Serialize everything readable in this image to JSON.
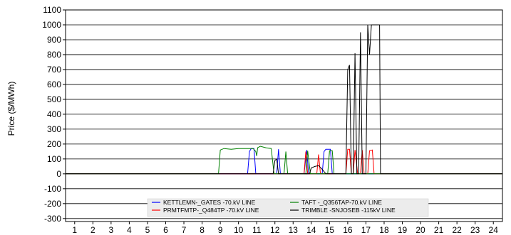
{
  "chart_data": {
    "type": "line",
    "ylabel": "Price ($/MWh)",
    "xlabel": "",
    "xlim": [
      0.5,
      24.5
    ],
    "ylim": [
      -320,
      1100
    ],
    "x_ticks": [
      1,
      2,
      3,
      4,
      5,
      6,
      7,
      8,
      9,
      10,
      11,
      12,
      13,
      14,
      15,
      16,
      17,
      18,
      19,
      20,
      21,
      22,
      23,
      24
    ],
    "y_ticks": [
      -300,
      -200,
      -100,
      0,
      100,
      200,
      300,
      400,
      500,
      600,
      700,
      800,
      900,
      1000,
      1100
    ],
    "grid": "horizontal",
    "legend_position": "bottom-center",
    "series": [
      {
        "name": "KETTLEMN-_GATES -70.kV LINE",
        "color": "#0000ff",
        "points": [
          [
            0.5,
            0
          ],
          [
            10.5,
            0
          ],
          [
            10.6,
            150
          ],
          [
            10.7,
            170
          ],
          [
            10.85,
            170
          ],
          [
            10.95,
            0
          ],
          [
            12.1,
            0
          ],
          [
            12.2,
            165
          ],
          [
            12.3,
            0
          ],
          [
            13.6,
            0
          ],
          [
            13.75,
            160
          ],
          [
            13.85,
            0
          ],
          [
            14.6,
            0
          ],
          [
            14.7,
            150
          ],
          [
            14.8,
            165
          ],
          [
            15.05,
            165
          ],
          [
            15.15,
            0
          ],
          [
            24.5,
            0
          ]
        ]
      },
      {
        "name": "PRMTFMTP-_Q484TP -70.kV LINE",
        "color": "#ff0000",
        "points": [
          [
            0.5,
            0
          ],
          [
            13.6,
            0
          ],
          [
            13.7,
            150
          ],
          [
            13.8,
            0
          ],
          [
            14.3,
            0
          ],
          [
            14.4,
            130
          ],
          [
            14.5,
            0
          ],
          [
            15.9,
            0
          ],
          [
            16.0,
            165
          ],
          [
            16.1,
            165
          ],
          [
            16.2,
            0
          ],
          [
            16.3,
            0
          ],
          [
            16.4,
            160
          ],
          [
            16.55,
            0
          ],
          [
            16.7,
            0
          ],
          [
            16.8,
            160
          ],
          [
            16.9,
            0
          ],
          [
            17.1,
            0
          ],
          [
            17.2,
            155
          ],
          [
            17.35,
            160
          ],
          [
            17.45,
            0
          ],
          [
            24.5,
            0
          ]
        ]
      },
      {
        "name": "TAFT -_Q356TAP-70.kV LINE",
        "color": "#008000",
        "points": [
          [
            0.5,
            0
          ],
          [
            8.9,
            0
          ],
          [
            9.0,
            160
          ],
          [
            9.2,
            170
          ],
          [
            9.6,
            165
          ],
          [
            10.0,
            170
          ],
          [
            10.5,
            170
          ],
          [
            10.8,
            170
          ],
          [
            10.95,
            150
          ],
          [
            11.0,
            120
          ],
          [
            11.05,
            175
          ],
          [
            11.2,
            185
          ],
          [
            11.5,
            175
          ],
          [
            11.8,
            170
          ],
          [
            11.95,
            0
          ],
          [
            12.5,
            0
          ],
          [
            12.6,
            150
          ],
          [
            12.7,
            0
          ],
          [
            13.7,
            0
          ],
          [
            13.8,
            155
          ],
          [
            13.95,
            0
          ],
          [
            14.9,
            0
          ],
          [
            15.0,
            155
          ],
          [
            15.15,
            155
          ],
          [
            15.25,
            0
          ],
          [
            24.5,
            0
          ]
        ]
      },
      {
        "name": "TRIMBLE -SNJOSEB -115kV LINE",
        "color": "#000000",
        "points": [
          [
            0.5,
            0
          ],
          [
            11.9,
            0
          ],
          [
            12.0,
            90
          ],
          [
            12.1,
            100
          ],
          [
            12.2,
            0
          ],
          [
            13.9,
            0
          ],
          [
            14.0,
            40
          ],
          [
            14.2,
            50
          ],
          [
            14.4,
            55
          ],
          [
            14.6,
            30
          ],
          [
            14.8,
            0
          ],
          [
            15.9,
            0
          ],
          [
            16.0,
            700
          ],
          [
            16.1,
            730
          ],
          [
            16.2,
            0
          ],
          [
            16.3,
            0
          ],
          [
            16.4,
            810
          ],
          [
            16.5,
            0
          ],
          [
            16.6,
            0
          ],
          [
            16.7,
            950
          ],
          [
            16.8,
            0
          ],
          [
            17.0,
            0
          ],
          [
            17.1,
            1000
          ],
          [
            17.2,
            800
          ],
          [
            17.3,
            1000
          ],
          [
            17.5,
            1000
          ],
          [
            17.75,
            1000
          ],
          [
            17.8,
            0
          ],
          [
            24.5,
            0
          ]
        ]
      }
    ]
  }
}
